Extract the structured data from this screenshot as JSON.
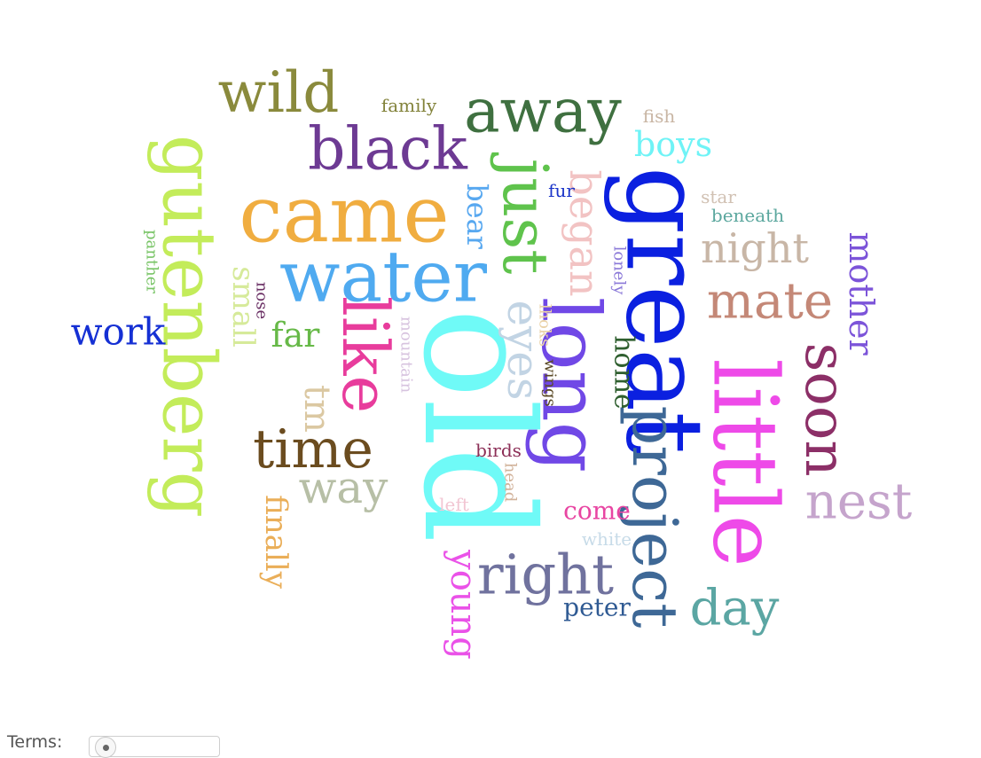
{
  "words": [
    {
      "text": "old",
      "color": "#6ffaf7"
    },
    {
      "text": "great",
      "color": "#0b20e0"
    },
    {
      "text": "little",
      "color": "#ee4ae8"
    },
    {
      "text": "long",
      "color": "#7048e6"
    },
    {
      "text": "came",
      "color": "#f0ad40"
    },
    {
      "text": "gutenberg",
      "color": "#c3ec5a"
    },
    {
      "text": "project",
      "color": "#3e6896"
    },
    {
      "text": "water",
      "color": "#4faaf0"
    },
    {
      "text": "just",
      "color": "#5fc34c"
    },
    {
      "text": "like",
      "color": "#e83c9c"
    },
    {
      "text": "away",
      "color": "#3f7040"
    },
    {
      "text": "soon",
      "color": "#8c2f67"
    },
    {
      "text": "black",
      "color": "#6d3a93"
    },
    {
      "text": "wild",
      "color": "#8a8a3c"
    },
    {
      "text": "time",
      "color": "#6b4c1f"
    },
    {
      "text": "nest",
      "color": "#c5a4cc"
    },
    {
      "text": "right",
      "color": "#70729e"
    },
    {
      "text": "mate",
      "color": "#c48877"
    },
    {
      "text": "day",
      "color": "#5ba6a3"
    },
    {
      "text": "eyes",
      "color": "#c2d4e4"
    },
    {
      "text": "night",
      "color": "#c8b6a6"
    },
    {
      "text": "way",
      "color": "#b7bfa6"
    },
    {
      "text": "began",
      "color": "#f2c3c3"
    },
    {
      "text": "mother",
      "color": "#7c54d9"
    },
    {
      "text": "boys",
      "color": "#6ff3f6"
    },
    {
      "text": "work",
      "color": "#1530d4"
    },
    {
      "text": "far",
      "color": "#67b948"
    },
    {
      "text": "young",
      "color": "#ea52e8"
    },
    {
      "text": "tm",
      "color": "#dbc8a2"
    },
    {
      "text": "finally",
      "color": "#eaae58"
    },
    {
      "text": "small",
      "color": "#d6ea9a"
    },
    {
      "text": "bear",
      "color": "#58a8f0"
    },
    {
      "text": "home",
      "color": "#2f5f2f"
    },
    {
      "text": "come",
      "color": "#e845a2"
    },
    {
      "text": "peter",
      "color": "#2f5a93"
    },
    {
      "text": "family",
      "color": "#82823a"
    },
    {
      "text": "fish",
      "color": "#c9b6a4"
    },
    {
      "text": "star",
      "color": "#d1c1b3"
    },
    {
      "text": "beneath",
      "color": "#5ba79e"
    },
    {
      "text": "fur",
      "color": "#1b35c9"
    },
    {
      "text": "lonely",
      "color": "#8a78d8"
    },
    {
      "text": "panther",
      "color": "#78c466"
    },
    {
      "text": "nose",
      "color": "#6a2f64"
    },
    {
      "text": "mountain",
      "color": "#d7c3df"
    },
    {
      "text": "lhoks",
      "color": "#ead2a6"
    },
    {
      "text": "wings",
      "color": "#5b4a26"
    },
    {
      "text": "birds",
      "color": "#8c2f57"
    },
    {
      "text": "head",
      "color": "#d1b29a"
    },
    {
      "text": "left",
      "color": "#f2c6d3"
    },
    {
      "text": "white",
      "color": "#c7dbe8"
    }
  ],
  "controls": {
    "terms_label": "Terms:",
    "terms_slider_position": 0.0
  }
}
